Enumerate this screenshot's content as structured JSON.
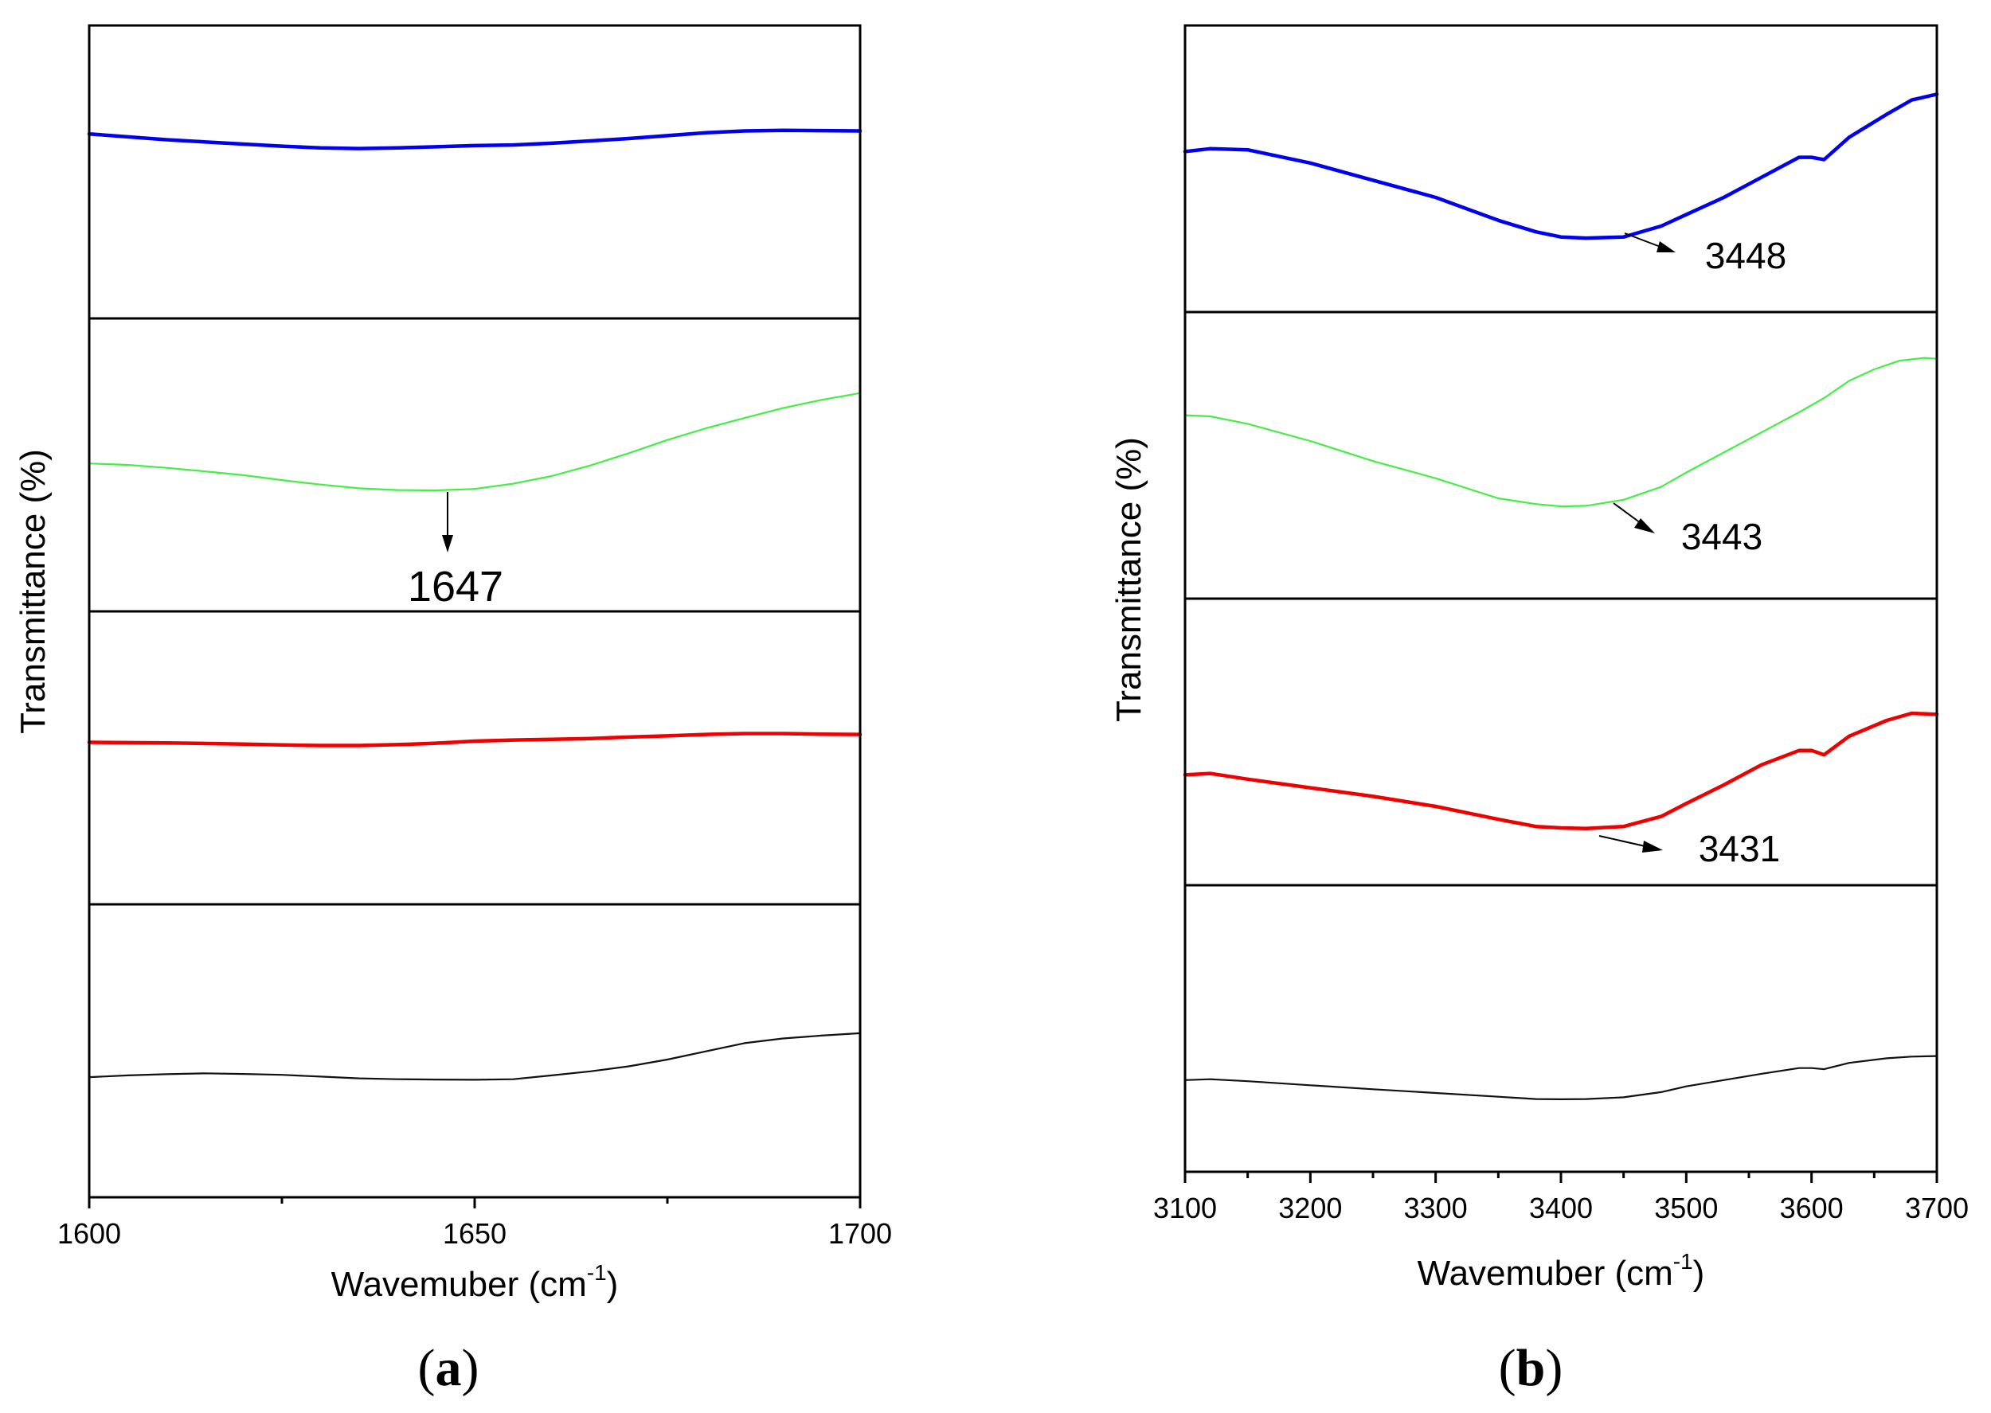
{
  "chart_data": [
    {
      "type": "line",
      "panel_label": "(a)",
      "panel_letter": "a",
      "xlabel": "Wavemuber (cm",
      "xlabel_sup": "-1",
      "xlabel_close": ")",
      "ylabel": "Transmittance (%)",
      "xlim": [
        1600,
        1700
      ],
      "x_ticks": [
        1600,
        1650,
        1700
      ],
      "x_minor_ticks": [
        1625,
        1675
      ],
      "stacked_panels": 4,
      "series": [
        {
          "name": "blue",
          "color": "#0000ee",
          "width": 4.5,
          "x": [
            1600,
            1610,
            1620,
            1625,
            1630,
            1635,
            1640,
            1645,
            1650,
            1655,
            1660,
            1665,
            1670,
            1675,
            1680,
            1685,
            1690,
            1695,
            1700
          ],
          "values": [
            0.63,
            0.61,
            0.595,
            0.588,
            0.582,
            0.58,
            0.582,
            0.586,
            0.59,
            0.592,
            0.598,
            0.606,
            0.614,
            0.624,
            0.634,
            0.64,
            0.642,
            0.641,
            0.64
          ]
        },
        {
          "name": "green",
          "color": "#44ee44",
          "width": 2.2,
          "x": [
            1600,
            1605,
            1610,
            1615,
            1620,
            1625,
            1630,
            1635,
            1640,
            1645,
            1650,
            1655,
            1660,
            1665,
            1670,
            1675,
            1680,
            1685,
            1690,
            1695,
            1700
          ],
          "values": [
            0.505,
            0.5,
            0.49,
            0.478,
            0.465,
            0.448,
            0.433,
            0.42,
            0.414,
            0.413,
            0.418,
            0.436,
            0.462,
            0.498,
            0.54,
            0.585,
            0.625,
            0.66,
            0.694,
            0.722,
            0.745
          ]
        },
        {
          "name": "red",
          "color": "#ee0000",
          "width": 4.5,
          "x": [
            1600,
            1610,
            1620,
            1625,
            1630,
            1635,
            1640,
            1645,
            1650,
            1655,
            1660,
            1665,
            1670,
            1675,
            1680,
            1685,
            1690,
            1695,
            1700
          ],
          "values": [
            0.553,
            0.551,
            0.547,
            0.544,
            0.542,
            0.542,
            0.545,
            0.55,
            0.557,
            0.561,
            0.563,
            0.566,
            0.571,
            0.575,
            0.58,
            0.583,
            0.583,
            0.581,
            0.58
          ]
        },
        {
          "name": "black",
          "color": "#111111",
          "width": 2.2,
          "x": [
            1600,
            1605,
            1610,
            1615,
            1620,
            1625,
            1630,
            1635,
            1640,
            1645,
            1650,
            1655,
            1660,
            1665,
            1670,
            1675,
            1680,
            1685,
            1690,
            1695,
            1700
          ],
          "values": [
            0.41,
            0.416,
            0.42,
            0.423,
            0.421,
            0.418,
            0.412,
            0.406,
            0.403,
            0.402,
            0.401,
            0.403,
            0.416,
            0.43,
            0.447,
            0.47,
            0.498,
            0.526,
            0.542,
            0.552,
            0.56
          ]
        }
      ],
      "annotations": [
        {
          "text": "1647",
          "x": 1646.5,
          "series": "green"
        }
      ]
    },
    {
      "type": "line",
      "panel_label": "(b)",
      "panel_letter": "b",
      "xlabel": "Wavemuber (cm",
      "xlabel_sup": "-1",
      "xlabel_close": ")",
      "ylabel": "Transmittance (%)",
      "xlim": [
        3100,
        3700
      ],
      "x_ticks": [
        3100,
        3200,
        3300,
        3400,
        3500,
        3600,
        3700
      ],
      "x_minor_ticks": [
        3150,
        3250,
        3350,
        3450,
        3550,
        3650
      ],
      "stacked_panels": 4,
      "series": [
        {
          "name": "blue",
          "color": "#0000ee",
          "width": 4.5,
          "x": [
            3100,
            3120,
            3150,
            3200,
            3250,
            3300,
            3350,
            3380,
            3400,
            3420,
            3450,
            3480,
            3500,
            3530,
            3560,
            3590,
            3600,
            3610,
            3630,
            3660,
            3680,
            3700
          ],
          "values": [
            0.56,
            0.57,
            0.566,
            0.52,
            0.46,
            0.4,
            0.32,
            0.28,
            0.262,
            0.258,
            0.262,
            0.3,
            0.34,
            0.4,
            0.47,
            0.54,
            0.54,
            0.532,
            0.61,
            0.69,
            0.74,
            0.76
          ]
        },
        {
          "name": "green",
          "color": "#44ee44",
          "width": 2.2,
          "x": [
            3100,
            3120,
            3150,
            3200,
            3250,
            3300,
            3350,
            3380,
            3400,
            3420,
            3450,
            3480,
            3500,
            3530,
            3560,
            3590,
            3610,
            3630,
            3650,
            3670,
            3690,
            3700
          ],
          "values": [
            0.64,
            0.636,
            0.61,
            0.55,
            0.48,
            0.42,
            0.35,
            0.33,
            0.322,
            0.324,
            0.345,
            0.39,
            0.44,
            0.51,
            0.58,
            0.65,
            0.7,
            0.76,
            0.8,
            0.83,
            0.84,
            0.837
          ]
        },
        {
          "name": "red",
          "color": "#ee0000",
          "width": 4.5,
          "x": [
            3100,
            3120,
            3150,
            3200,
            3250,
            3300,
            3350,
            3380,
            3400,
            3420,
            3450,
            3480,
            3500,
            3530,
            3560,
            3590,
            3600,
            3610,
            3630,
            3660,
            3680,
            3700
          ],
          "values": [
            0.385,
            0.39,
            0.37,
            0.34,
            0.31,
            0.275,
            0.23,
            0.205,
            0.2,
            0.198,
            0.205,
            0.24,
            0.285,
            0.35,
            0.42,
            0.47,
            0.47,
            0.455,
            0.52,
            0.575,
            0.6,
            0.596
          ]
        },
        {
          "name": "black",
          "color": "#111111",
          "width": 2.2,
          "x": [
            3100,
            3120,
            3150,
            3200,
            3250,
            3300,
            3350,
            3380,
            3400,
            3420,
            3450,
            3480,
            3500,
            3530,
            3560,
            3590,
            3600,
            3610,
            3630,
            3660,
            3680,
            3700
          ],
          "values": [
            0.32,
            0.323,
            0.316,
            0.302,
            0.288,
            0.275,
            0.262,
            0.254,
            0.253,
            0.254,
            0.26,
            0.278,
            0.298,
            0.32,
            0.342,
            0.362,
            0.362,
            0.358,
            0.38,
            0.396,
            0.402,
            0.404
          ]
        }
      ],
      "annotations": [
        {
          "text": "3448",
          "x": 3448,
          "series": "blue"
        },
        {
          "text": "3443",
          "x": 3443,
          "series": "green"
        },
        {
          "text": "3431",
          "x": 3431,
          "series": "red"
        }
      ]
    }
  ]
}
